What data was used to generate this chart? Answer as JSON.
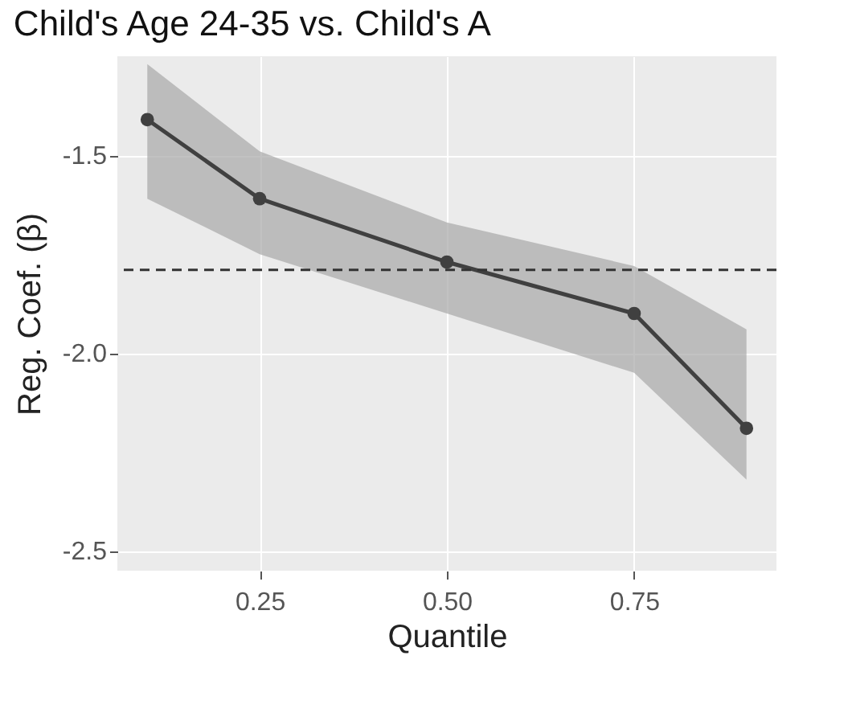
{
  "chart_data": {
    "type": "line",
    "title": "Child's Age 24-35 vs. Child's A",
    "xlabel": "Quantile",
    "ylabel": "Reg. Coef. (β)",
    "x": [
      0.1,
      0.25,
      0.5,
      0.75,
      0.9
    ],
    "series": [
      {
        "color": "#404040",
        "values": [
          -1.41,
          -1.61,
          -1.77,
          -1.9,
          -2.19
        ],
        "lower": [
          -1.61,
          -1.75,
          -1.9,
          -2.05,
          -2.32
        ],
        "upper": [
          -1.27,
          -1.49,
          -1.67,
          -1.78,
          -1.94
        ]
      }
    ],
    "xlim": [
      0.06,
      0.94
    ],
    "xticks": [
      0.25,
      {
        "value": 0.5,
        "label": "0.50"
      },
      0.75
    ],
    "ylim": [
      -2.55,
      -1.25
    ],
    "yticks": [
      -2.5,
      {
        "value": -2,
        "label": "-2.0"
      },
      -1.5
    ],
    "ref_lines": [
      {
        "axis": "y",
        "value": -1.79,
        "color": "#333333",
        "line_style": "dashed"
      }
    ],
    "grid": true,
    "marker": "circle",
    "line_style": "solid"
  }
}
